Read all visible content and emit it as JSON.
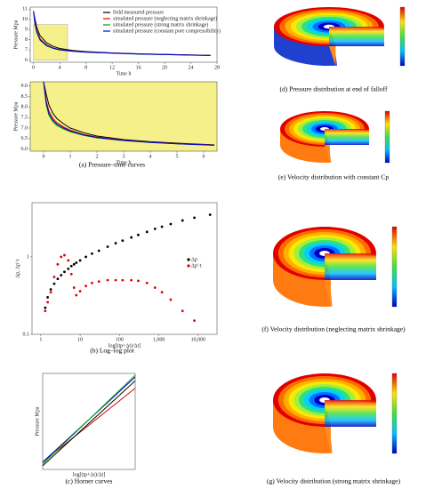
{
  "panels": {
    "a": "(a) Pressure–time curves",
    "b": "(b) Log–log plot",
    "c": "(c) Horner curves",
    "d": "(d) Pressure distribution at end of falloff",
    "e": "(e) Velocity distribution with constant Cp",
    "f": "(f) Velocity distribution (neglecting matrix shrinkage)",
    "g": "(g) Velocity distribution (strong matrix shrinkage)"
  },
  "chart_data": [
    {
      "type": "line",
      "xlabel": "Time  h",
      "ylabel": "Pressure  Mpa",
      "xlim": [
        -0.5,
        28
      ],
      "ylim": [
        5.8,
        11.2
      ],
      "xticks": [
        0,
        4,
        8,
        12,
        16,
        20,
        24,
        28
      ],
      "yticks": [
        6,
        7,
        8,
        9,
        10,
        11
      ],
      "legend": "upper right",
      "highlight": {
        "x": [
          0,
          5.2
        ],
        "y": [
          6,
          9.5
        ]
      },
      "x": [
        0,
        0.2,
        0.5,
        1,
        2,
        3,
        4,
        6,
        8,
        12,
        16,
        20,
        24,
        27
      ],
      "series": [
        {
          "name": "field measured pressure",
          "color": "#000000",
          "values": [
            10.8,
            10.1,
            9.2,
            8.4,
            7.7,
            7.35,
            7.15,
            6.95,
            6.85,
            6.72,
            6.63,
            6.57,
            6.52,
            6.48
          ]
        },
        {
          "name": "simulated pressure (neglecting matrix shrinkage)",
          "color": "#e00000",
          "values": [
            10.8,
            9.8,
            8.9,
            8.1,
            7.5,
            7.2,
            7.05,
            6.9,
            6.8,
            6.7,
            6.62,
            6.56,
            6.51,
            6.47
          ]
        },
        {
          "name": "simulated pressure (strong matrix shrinkage)",
          "color": "#00a000",
          "values": [
            10.8,
            9.6,
            8.7,
            7.95,
            7.4,
            7.15,
            7.0,
            6.87,
            6.78,
            6.68,
            6.6,
            6.55,
            6.5,
            6.46
          ]
        },
        {
          "name": "simulated pressure (constant pore compressibility)",
          "color": "#0000e0",
          "values": [
            10.8,
            9.7,
            8.8,
            8.0,
            7.45,
            7.18,
            7.02,
            6.88,
            6.79,
            6.69,
            6.61,
            6.55,
            6.5,
            6.46
          ]
        }
      ]
    },
    {
      "type": "line",
      "xlabel": "Time  h",
      "ylabel": "Pressure  Mpa",
      "xlim": [
        -0.5,
        6.5
      ],
      "ylim": [
        5.9,
        9.2
      ],
      "xticks": [
        0,
        1,
        2,
        3,
        4,
        5,
        6
      ],
      "yticks": [
        {
          "value": 6,
          "label": "6.0"
        },
        6.5,
        {
          "value": 7,
          "label": "7.0"
        },
        7.5,
        {
          "value": 8,
          "label": "8.0"
        },
        8.5,
        {
          "value": 9,
          "label": "9.0"
        }
      ],
      "background": "#f6f08a",
      "x": [
        0,
        0.1,
        0.2,
        0.35,
        0.5,
        0.75,
        1,
        1.5,
        2,
        3,
        4,
        5,
        6,
        6.4
      ],
      "series": [
        {
          "color": "#000000",
          "values": [
            9.2,
            8.6,
            8.1,
            7.7,
            7.45,
            7.2,
            7.0,
            6.78,
            6.62,
            6.45,
            6.35,
            6.28,
            6.22,
            6.2
          ]
        },
        {
          "color": "#e00000",
          "values": [
            9.2,
            8.3,
            7.8,
            7.45,
            7.25,
            7.05,
            6.9,
            6.7,
            6.57,
            6.42,
            6.33,
            6.26,
            6.21,
            6.19
          ]
        },
        {
          "color": "#00a000",
          "values": [
            9.2,
            8.1,
            7.6,
            7.3,
            7.12,
            6.95,
            6.82,
            6.65,
            6.53,
            6.4,
            6.31,
            6.25,
            6.2,
            6.18
          ]
        },
        {
          "color": "#0000e0",
          "values": [
            9.2,
            8.2,
            7.7,
            7.37,
            7.18,
            7.0,
            6.86,
            6.67,
            6.55,
            6.41,
            6.32,
            6.25,
            6.2,
            6.18
          ]
        }
      ]
    },
    {
      "type": "scatter",
      "xlabel": "log[(tp+Δt)/Δt]",
      "ylabel": "Δp, Δp'·t",
      "xlog": true,
      "ylog": true,
      "xlim": [
        0.6,
        30000
      ],
      "ylim": [
        0.1,
        5
      ],
      "xticks": [
        1,
        10,
        100,
        {
          "value": 1000,
          "label": "1,000"
        },
        {
          "value": 10000,
          "label": "10,000"
        }
      ],
      "yticks": [
        0.1,
        1
      ],
      "legend": "center right",
      "x": [
        1.3,
        1.5,
        1.8,
        2.2,
        2.7,
        3.3,
        4,
        5,
        6,
        7,
        8,
        10,
        14,
        20,
        30,
        50,
        80,
        120,
        200,
        300,
        500,
        800,
        1200,
        2000,
        4000,
        8000,
        20000
      ],
      "series": [
        {
          "name": "Δp",
          "color": "#000000",
          "values": [
            0.22,
            0.3,
            0.38,
            0.45,
            0.52,
            0.58,
            0.64,
            0.7,
            0.76,
            0.8,
            0.84,
            0.9,
            1.0,
            1.1,
            1.2,
            1.35,
            1.5,
            1.62,
            1.78,
            1.92,
            2.1,
            2.3,
            2.45,
            2.65,
            2.95,
            3.2,
            3.5
          ]
        },
        {
          "name": "Δp'·t",
          "color": "#e00000",
          "values": [
            0.2,
            0.26,
            0.35,
            0.55,
            0.8,
            1.0,
            1.05,
            0.9,
            0.6,
            0.4,
            0.32,
            0.36,
            0.42,
            0.46,
            0.48,
            0.5,
            0.5,
            0.5,
            0.5,
            0.49,
            0.46,
            0.4,
            0.35,
            0.28,
            0.2,
            0.15,
            null
          ]
        }
      ]
    },
    {
      "type": "line",
      "xlabel": "log[(tp+Δt)/Δt]",
      "ylabel": "Pressure  Mpa",
      "xlim": [
        0,
        4.5
      ],
      "ylim": [
        5.8,
        11
      ],
      "x": [
        0,
        4.5
      ],
      "series": [
        {
          "color": "#e00000",
          "values": [
            6.2,
            10.2
          ]
        },
        {
          "color": "#0000e0",
          "values": [
            6.2,
            10.8
          ]
        },
        {
          "color": "#00a000",
          "values": [
            6.1,
            10.9
          ]
        },
        {
          "color": "#000000",
          "values": [
            6.0,
            10.6
          ]
        }
      ]
    }
  ]
}
